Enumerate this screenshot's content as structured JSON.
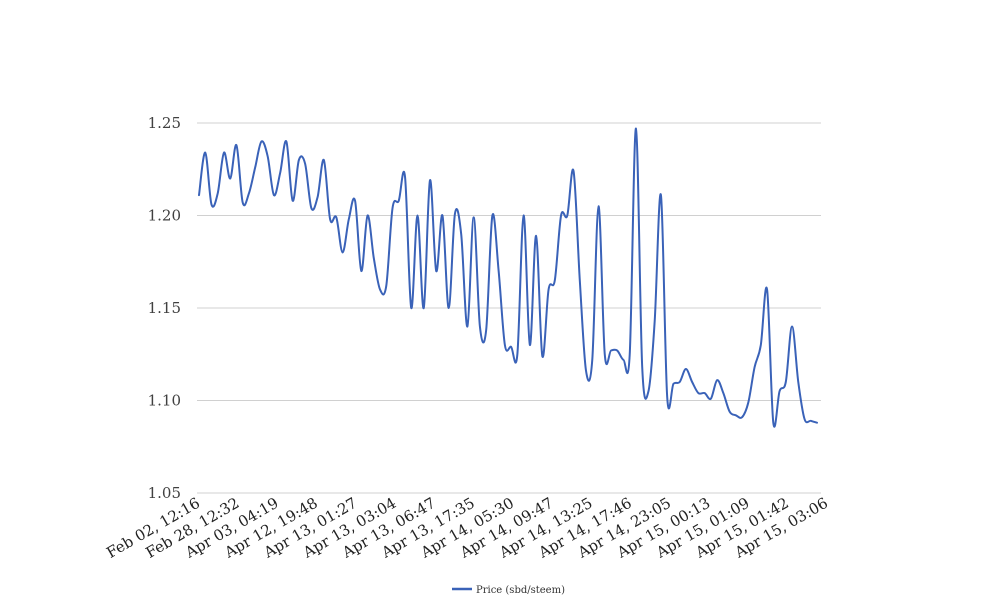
{
  "chart_data": {
    "type": "line",
    "title": "",
    "xlabel": "",
    "ylabel": "",
    "ylim": [
      1.05,
      1.25
    ],
    "yticks": [
      "1.05",
      "1.10",
      "1.15",
      "1.20",
      "1.25"
    ],
    "x_tick_labels": [
      "Feb 02, 12:16",
      "Feb 28, 12:32",
      "Apr 03, 04:19",
      "Apr 12, 19:48",
      "Apr 13, 01:27",
      "Apr 13, 03:04",
      "Apr 13, 06:47",
      "Apr 13, 17:35",
      "Apr 14, 05:30",
      "Apr 14, 09:47",
      "Apr 14, 13:25",
      "Apr 14, 17:46",
      "Apr 14, 23:05",
      "Apr 15, 00:13",
      "Apr 15, 01:09",
      "Apr 15, 01:42",
      "Apr 15, 03:06"
    ],
    "grid": true,
    "legend_position": "bottom-center",
    "series": [
      {
        "name": "Price (sbd/steem)",
        "color": "#3a62b8",
        "values": [
          1.211,
          1.234,
          1.206,
          1.212,
          1.234,
          1.22,
          1.238,
          1.207,
          1.212,
          1.226,
          1.24,
          1.232,
          1.211,
          1.223,
          1.24,
          1.208,
          1.23,
          1.228,
          1.204,
          1.21,
          1.23,
          1.198,
          1.199,
          1.18,
          1.198,
          1.208,
          1.17,
          1.2,
          1.177,
          1.16,
          1.162,
          1.204,
          1.208,
          1.221,
          1.15,
          1.2,
          1.15,
          1.219,
          1.17,
          1.2,
          1.15,
          1.201,
          1.19,
          1.14,
          1.199,
          1.14,
          1.138,
          1.2,
          1.17,
          1.13,
          1.129,
          1.125,
          1.2,
          1.13,
          1.189,
          1.124,
          1.16,
          1.165,
          1.2,
          1.2,
          1.224,
          1.165,
          1.116,
          1.122,
          1.205,
          1.125,
          1.127,
          1.127,
          1.122,
          1.125,
          1.247,
          1.118,
          1.105,
          1.143,
          1.211,
          1.102,
          1.109,
          1.11,
          1.117,
          1.11,
          1.104,
          1.104,
          1.101,
          1.111,
          1.104,
          1.094,
          1.092,
          1.091,
          1.099,
          1.118,
          1.13,
          1.16,
          1.088,
          1.105,
          1.11,
          1.14,
          1.11,
          1.09,
          1.089,
          1.088
        ]
      }
    ]
  }
}
